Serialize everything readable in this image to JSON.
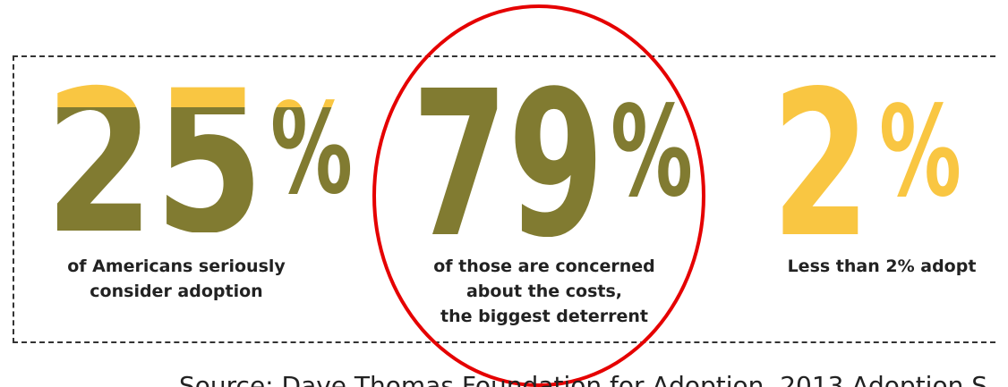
{
  "stats": [
    {
      "number": "25",
      "percent": "%",
      "caption_line1": "of Americans seriously",
      "caption_line2": "consider adoption",
      "caption_line3": ""
    },
    {
      "number": "79",
      "percent": "%",
      "caption_line1": "of those are concerned",
      "caption_line2": "about the costs,",
      "caption_line3": "the biggest deterrent"
    },
    {
      "number": "2",
      "percent": "%",
      "caption_line1": "Less than 2% adopt",
      "caption_line2": "",
      "caption_line3": ""
    }
  ],
  "source_text": "Source: Dave Thomas Foundation for Adoption, 2013 Adoption S",
  "colors": {
    "olive": "#817b31",
    "gold": "#f9c642",
    "annotation_red": "#e50000",
    "text": "#222222"
  },
  "annotation": "red-circle-around-79-percent",
  "fill_levels": {
    "stat_25": 0.25,
    "stat_79": 0.79,
    "stat_2": 0.02
  }
}
